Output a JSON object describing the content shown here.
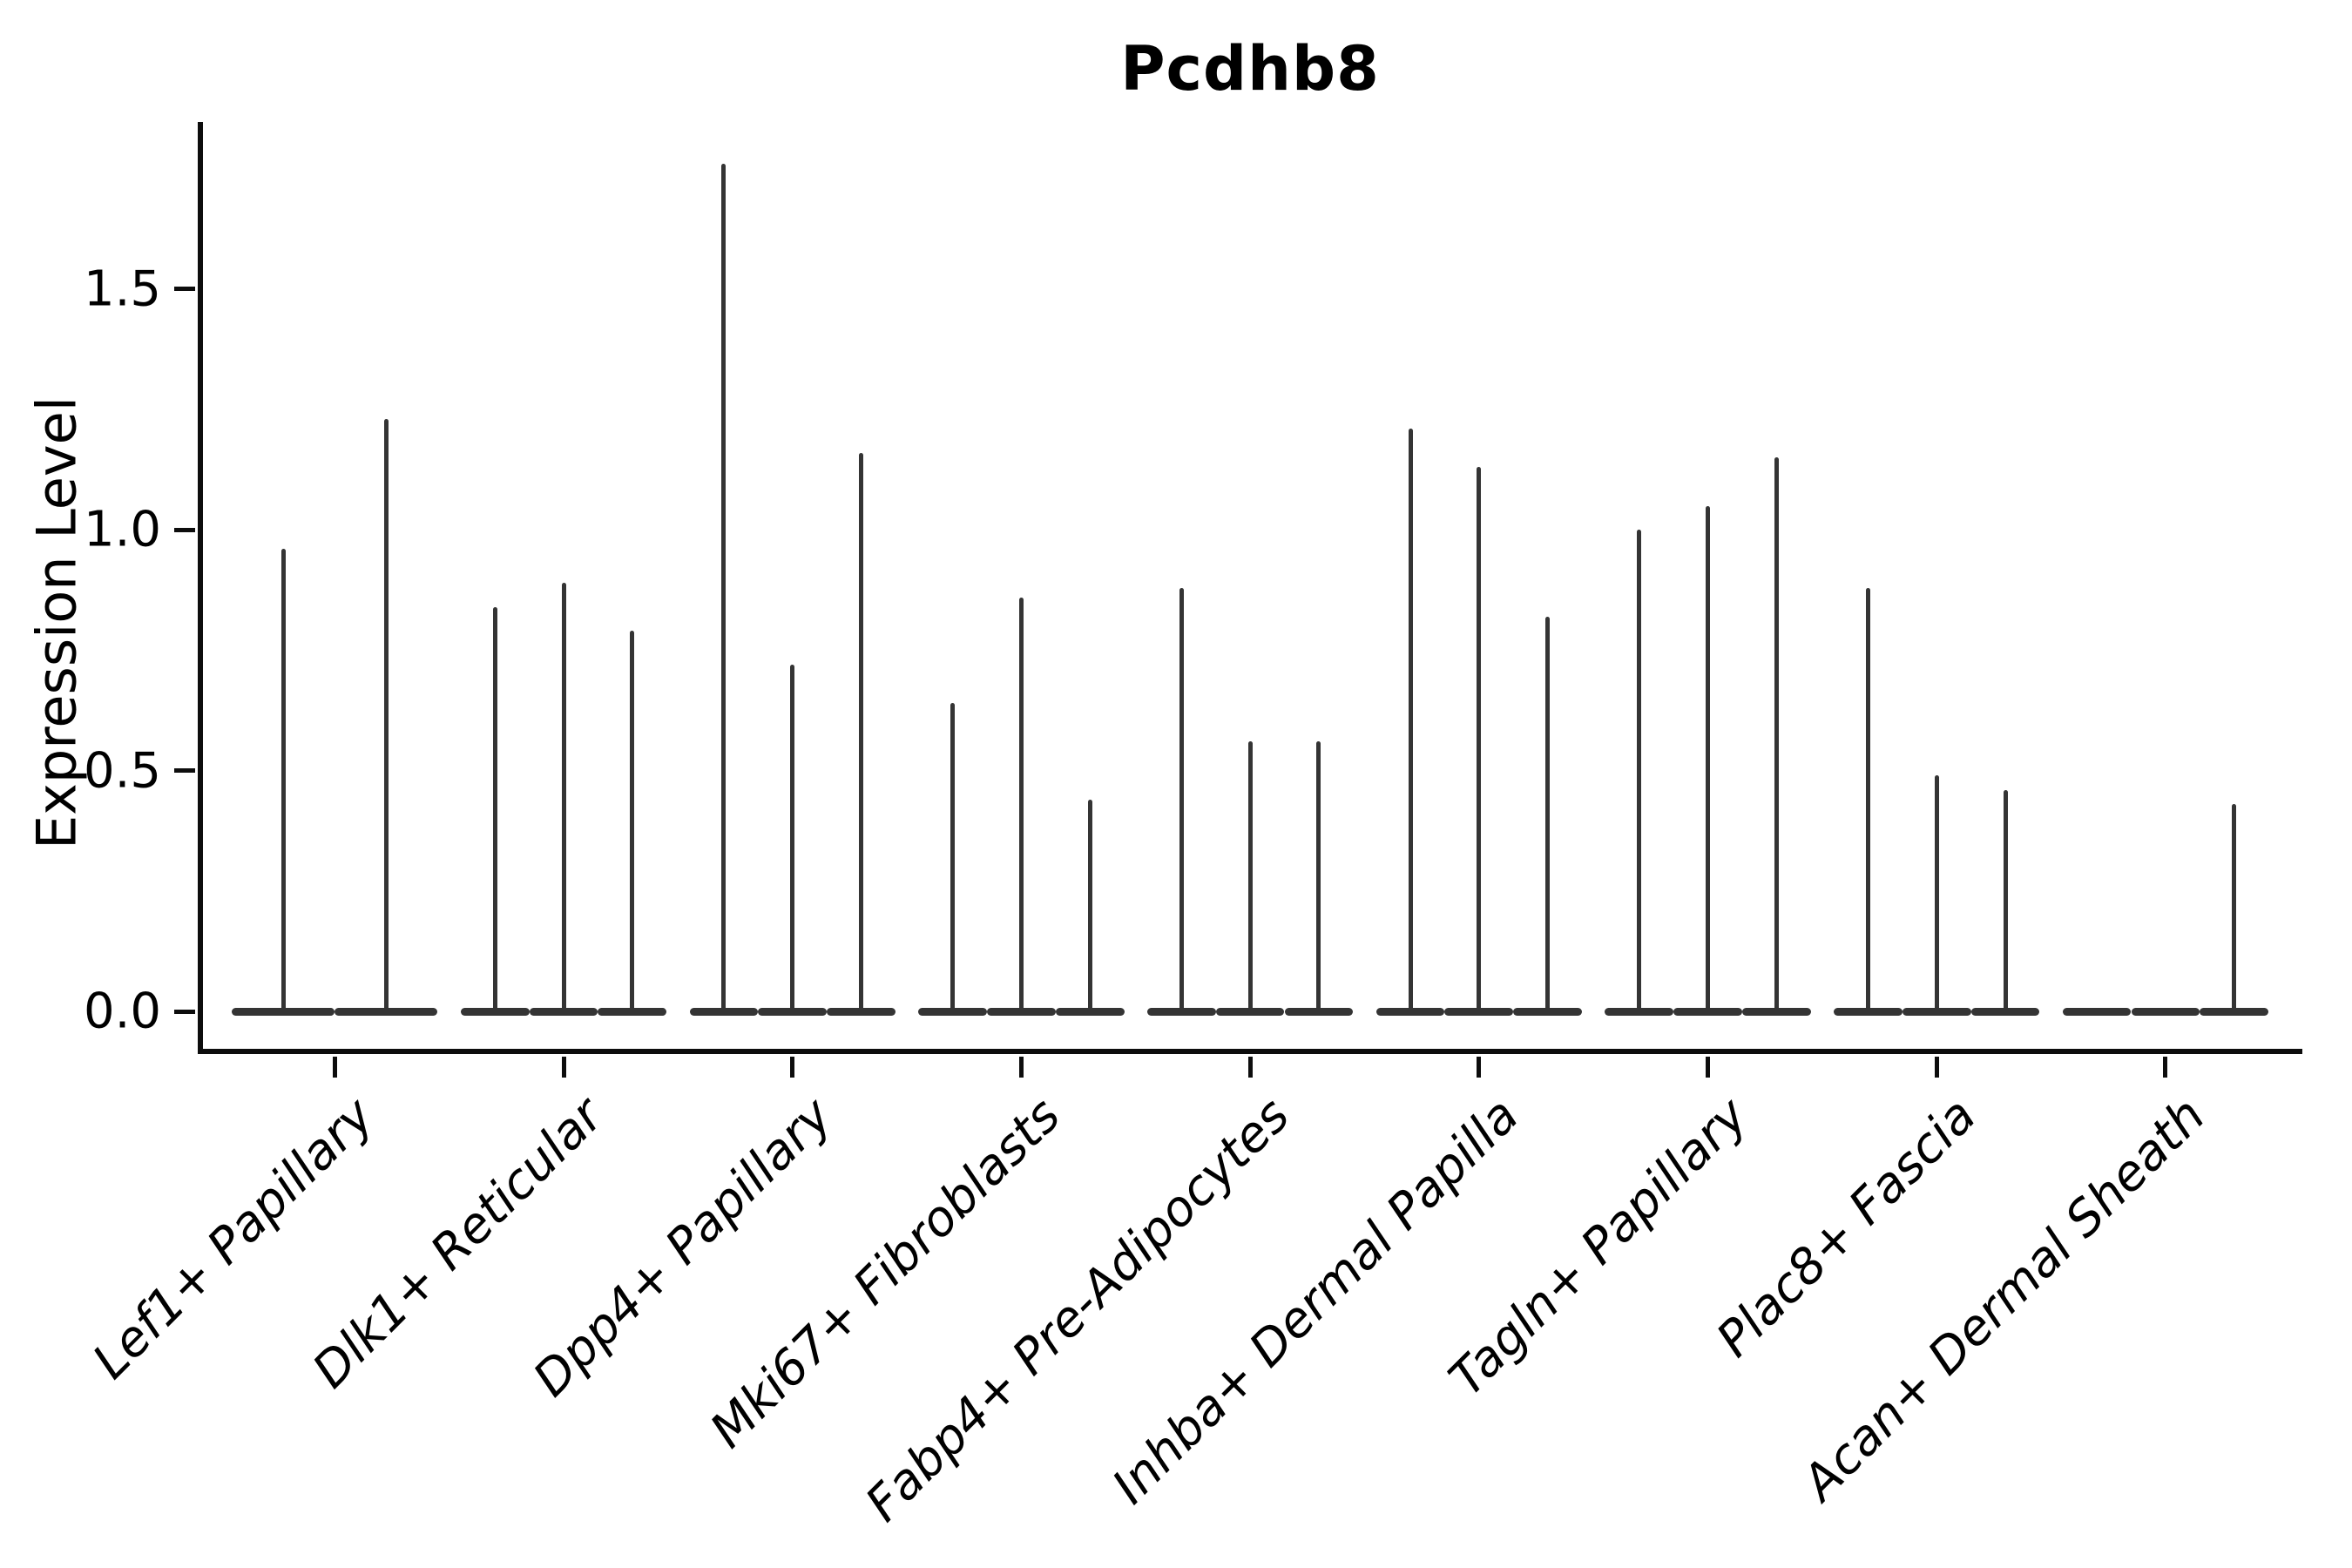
{
  "chart_data": {
    "type": "violin",
    "title": "Pcdhb8",
    "ylabel": "Expression Level",
    "xlabel": "",
    "grid": "off",
    "legend": "none",
    "yticks": [
      {
        "label": "0.0",
        "value": 0.0
      },
      {
        "label": "0.5",
        "value": 0.5
      },
      {
        "label": "1.0",
        "value": 1.0
      },
      {
        "label": "1.5",
        "value": 1.5
      }
    ],
    "ylim": [
      -0.09,
      1.85
    ],
    "note": "Each category holds thin spike-like violins; value listed is the max expression reached by each violin spike (0 = flat violin at baseline).",
    "categories": [
      {
        "label": "Lef1+ Papillary",
        "violin_max": [
          0.96,
          1.23
        ]
      },
      {
        "label": "Dlk1+ Reticular",
        "violin_max": [
          0.84,
          0.89,
          0.79
        ]
      },
      {
        "label": "Dpp4+ Papillary",
        "violin_max": [
          1.76,
          0.72,
          1.16
        ]
      },
      {
        "label": "Mki67+ Fibroblasts",
        "violin_max": [
          0.64,
          0.86,
          0.44
        ]
      },
      {
        "label": "Fabp4+ Pre-Adipocytes",
        "violin_max": [
          0.88,
          0.56,
          0.56
        ]
      },
      {
        "label": "Inhba+ Dermal Papilla",
        "violin_max": [
          1.21,
          1.13,
          0.82
        ]
      },
      {
        "label": "Tagln+ Papillary",
        "violin_max": [
          1.0,
          1.05,
          1.15
        ]
      },
      {
        "label": "Plac8+ Fascia",
        "violin_max": [
          0.88,
          0.49,
          0.46
        ]
      },
      {
        "label": "Acan+ Dermal Sheath",
        "violin_max": [
          0,
          0,
          0.43
        ]
      }
    ],
    "colors": {
      "violin_line": "#343434",
      "axis": "#0d0d0d",
      "text": "#000000",
      "background": "#ffffff"
    }
  }
}
